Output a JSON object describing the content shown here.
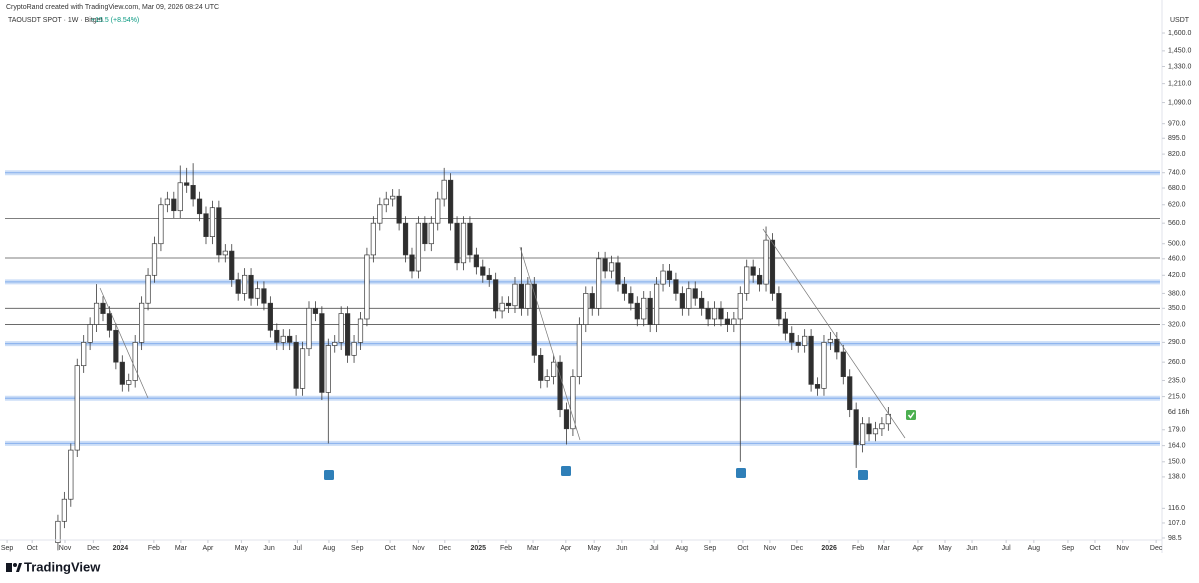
{
  "chart_data": {
    "type": "candlestick",
    "credit": "CryptoRand created with TradingView.com, Mar 09, 2026 08:24 UTC",
    "title": "TAOUSDT SPOT · 1W · Bitget",
    "change": "+15.5 (+8.54%)",
    "unit": "USDT",
    "countdown": "6d 16h",
    "brand": "TradingView",
    "log_scale": true,
    "up_color": "#ffffff",
    "down_color": "#2e2e2e",
    "outline_color": "#3a3a3a",
    "open": [
      96,
      108,
      122,
      160,
      255,
      290,
      320,
      360,
      340,
      310,
      260,
      230,
      235,
      290,
      360,
      420,
      500,
      620,
      640,
      600,
      700,
      690,
      640,
      590,
      520,
      610,
      470,
      480,
      410,
      380,
      420,
      370,
      390,
      360,
      310,
      290,
      300,
      290,
      225,
      280,
      350,
      340,
      220,
      285,
      290,
      340,
      270,
      290,
      330,
      470,
      560,
      620,
      640,
      650,
      560,
      470,
      430,
      560,
      500,
      560,
      640,
      710,
      560,
      450,
      560,
      470,
      440,
      420,
      410,
      345,
      360,
      355,
      400,
      350,
      400,
      270,
      235,
      240,
      260,
      200,
      180,
      240,
      320,
      380,
      350,
      460,
      430,
      450,
      400,
      380,
      360,
      330,
      370,
      320,
      400,
      430,
      410,
      380,
      350,
      390,
      370,
      350,
      330,
      350,
      330,
      320,
      330,
      380,
      440,
      420,
      400,
      510,
      380,
      330,
      305,
      290,
      285,
      300,
      230,
      225,
      290,
      295,
      275,
      240,
      200,
      165,
      185,
      175,
      180,
      185
    ],
    "high": [
      112,
      127,
      166,
      265,
      302,
      333,
      400,
      374,
      354,
      322,
      270,
      244,
      302,
      374,
      437,
      520,
      645,
      666,
      666,
      770,
      760,
      780,
      666,
      614,
      634,
      634,
      499,
      499,
      426,
      437,
      437,
      406,
      406,
      374,
      322,
      312,
      312,
      302,
      291,
      364,
      364,
      354,
      296,
      302,
      354,
      354,
      302,
      343,
      489,
      582,
      645,
      666,
      676,
      676,
      582,
      489,
      582,
      582,
      582,
      666,
      760,
      738,
      582,
      582,
      582,
      489,
      458,
      437,
      426,
      374,
      374,
      416,
      490,
      416,
      416,
      281,
      250,
      270,
      270,
      208,
      250,
      333,
      395,
      395,
      478,
      478,
      468,
      468,
      416,
      395,
      374,
      385,
      385,
      416,
      447,
      447,
      426,
      395,
      406,
      406,
      385,
      364,
      364,
      364,
      343,
      343,
      395,
      458,
      458,
      437,
      550,
      530,
      395,
      343,
      317,
      302,
      312,
      312,
      239,
      302,
      307,
      307,
      286,
      250,
      208,
      192,
      192,
      187,
      192,
      203
    ],
    "low": [
      92,
      104,
      117,
      154,
      245,
      278,
      307,
      326,
      298,
      250,
      221,
      221,
      226,
      278,
      346,
      403,
      480,
      595,
      576,
      576,
      662,
      614,
      566,
      499,
      499,
      451,
      451,
      394,
      365,
      365,
      355,
      355,
      346,
      298,
      278,
      278,
      278,
      216,
      216,
      269,
      326,
      211,
      166,
      274,
      278,
      259,
      259,
      278,
      317,
      451,
      538,
      595,
      614,
      538,
      451,
      413,
      413,
      480,
      480,
      538,
      614,
      538,
      432,
      432,
      451,
      422,
      403,
      394,
      331,
      331,
      341,
      341,
      336,
      336,
      259,
      225,
      226,
      230,
      192,
      165,
      173,
      230,
      307,
      336,
      336,
      413,
      413,
      384,
      365,
      346,
      317,
      317,
      307,
      307,
      384,
      394,
      365,
      336,
      336,
      355,
      336,
      317,
      317,
      317,
      307,
      307,
      150,
      365,
      403,
      384,
      384,
      365,
      317,
      293,
      278,
      274,
      274,
      221,
      216,
      216,
      278,
      264,
      230,
      192,
      145,
      158,
      168,
      168,
      173,
      178
    ],
    "close": [
      108,
      122,
      160,
      255,
      290,
      320,
      360,
      340,
      310,
      260,
      230,
      235,
      290,
      360,
      420,
      500,
      620,
      640,
      600,
      700,
      690,
      640,
      590,
      520,
      610,
      470,
      480,
      410,
      380,
      420,
      370,
      390,
      360,
      310,
      290,
      300,
      290,
      225,
      280,
      350,
      340,
      220,
      285,
      290,
      340,
      270,
      290,
      330,
      470,
      560,
      620,
      640,
      650,
      560,
      470,
      430,
      560,
      500,
      560,
      640,
      710,
      560,
      450,
      560,
      470,
      440,
      420,
      410,
      345,
      360,
      355,
      400,
      350,
      400,
      270,
      235,
      240,
      260,
      200,
      180,
      240,
      320,
      380,
      350,
      460,
      430,
      450,
      400,
      380,
      360,
      330,
      370,
      320,
      400,
      430,
      410,
      380,
      350,
      390,
      370,
      350,
      330,
      350,
      330,
      320,
      330,
      380,
      440,
      420,
      400,
      510,
      380,
      330,
      305,
      290,
      285,
      300,
      230,
      225,
      290,
      295,
      275,
      240,
      200,
      165,
      185,
      175,
      180,
      185,
      195
    ],
    "levels": [
      {
        "value": 740,
        "color": "#8fb5ee",
        "zone": true
      },
      {
        "value": 575,
        "color": "#555555",
        "zone": false
      },
      {
        "value": 462,
        "color": "#555555",
        "zone": false
      },
      {
        "value": 405,
        "color": "#8fb5ee",
        "zone": true
      },
      {
        "value": 350,
        "color": "#555555",
        "zone": false
      },
      {
        "value": 320,
        "color": "#555555",
        "zone": false
      },
      {
        "value": 288,
        "color": "#8fb5ee",
        "zone": true
      },
      {
        "value": 213,
        "color": "#8fb5ee",
        "zone": true
      },
      {
        "value": 166,
        "color": "#8fb5ee",
        "zone": true
      }
    ],
    "xlim": [
      -9,
      171.2
    ],
    "xticks": [
      {
        "value": -7.9,
        "label": "Sep"
      },
      {
        "value": -4,
        "label": "Oct"
      },
      {
        "value": 1.1,
        "label": "Nov"
      },
      {
        "value": 5.5,
        "label": "Dec"
      },
      {
        "value": 9.7,
        "label": "2024"
      },
      {
        "value": 14.9,
        "label": "Feb"
      },
      {
        "value": 19.1,
        "label": "Mar"
      },
      {
        "value": 23.3,
        "label": "Apr"
      },
      {
        "value": 28.5,
        "label": "May"
      },
      {
        "value": 32.8,
        "label": "Jun"
      },
      {
        "value": 37.2,
        "label": "Jul"
      },
      {
        "value": 42.1,
        "label": "Aug"
      },
      {
        "value": 46.5,
        "label": "Sep"
      },
      {
        "value": 51.6,
        "label": "Oct"
      },
      {
        "value": 56,
        "label": "Nov"
      },
      {
        "value": 60.1,
        "label": "Dec"
      },
      {
        "value": 65.3,
        "label": "2025"
      },
      {
        "value": 69.6,
        "label": "Feb"
      },
      {
        "value": 73.8,
        "label": "Mar"
      },
      {
        "value": 78.9,
        "label": "Apr"
      },
      {
        "value": 83.3,
        "label": "May"
      },
      {
        "value": 87.6,
        "label": "Jun"
      },
      {
        "value": 92.6,
        "label": "Jul"
      },
      {
        "value": 96.9,
        "label": "Aug"
      },
      {
        "value": 101.3,
        "label": "Sep"
      },
      {
        "value": 106.4,
        "label": "Oct"
      },
      {
        "value": 110.6,
        "label": "Nov"
      },
      {
        "value": 114.8,
        "label": "Dec"
      },
      {
        "value": 119.8,
        "label": "2026"
      },
      {
        "value": 124.3,
        "label": "Feb"
      },
      {
        "value": 128.3,
        "label": "Mar"
      },
      {
        "value": 133.6,
        "label": "Apr"
      },
      {
        "value": 137.8,
        "label": "May"
      },
      {
        "value": 142,
        "label": "Jun"
      },
      {
        "value": 147.3,
        "label": "Jul"
      },
      {
        "value": 151.6,
        "label": "Aug"
      },
      {
        "value": 156.9,
        "label": "Sep"
      },
      {
        "value": 161.1,
        "label": "Oct"
      },
      {
        "value": 165.4,
        "label": "Nov"
      },
      {
        "value": 170.6,
        "label": "Dec"
      }
    ],
    "ylim": [
      97.4,
      1817
    ],
    "yticks": [
      {
        "value": 1600,
        "label": "1,600.0"
      },
      {
        "value": 1450,
        "label": "1,450.0"
      },
      {
        "value": 1330,
        "label": "1,330.0"
      },
      {
        "value": 1210,
        "label": "1,210.0"
      },
      {
        "value": 1090,
        "label": "1,090.0"
      },
      {
        "value": 970,
        "label": "970.0"
      },
      {
        "value": 895,
        "label": "895.0"
      },
      {
        "value": 820,
        "label": "820.0"
      },
      {
        "value": 740,
        "label": "740.0"
      },
      {
        "value": 680,
        "label": "680.0"
      },
      {
        "value": 620,
        "label": "620.0"
      },
      {
        "value": 560,
        "label": "560.0"
      },
      {
        "value": 500,
        "label": "500.0"
      },
      {
        "value": 460,
        "label": "460.0"
      },
      {
        "value": 420,
        "label": "420.0"
      },
      {
        "value": 380,
        "label": "380.0"
      },
      {
        "value": 350,
        "label": "350.0"
      },
      {
        "value": 320,
        "label": "320.0"
      },
      {
        "value": 290,
        "label": "290.0"
      },
      {
        "value": 260,
        "label": "260.0"
      },
      {
        "value": 235,
        "label": "235.0"
      },
      {
        "value": 215,
        "label": "215.0"
      },
      {
        "value": 179,
        "label": "179.0"
      },
      {
        "value": 164,
        "label": "164.0"
      },
      {
        "value": 150,
        "label": "150.0"
      },
      {
        "value": 138,
        "label": "138.0"
      },
      {
        "value": 116,
        "label": "116.0"
      },
      {
        "value": 107,
        "label": "107.0"
      },
      {
        "value": 98.5,
        "label": "98.5"
      }
    ]
  }
}
